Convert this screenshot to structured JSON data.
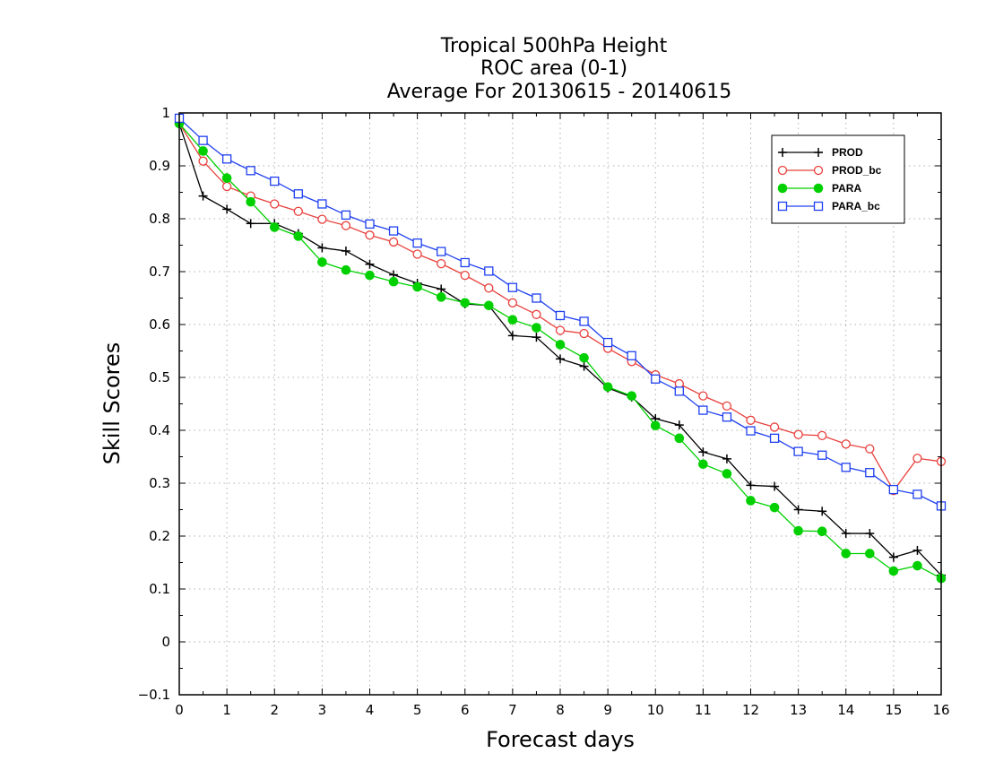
{
  "chart_data": {
    "type": "line",
    "title_lines": [
      "Tropical 500hPa Height",
      "ROC area (0-1)",
      "Average For 20130615 - 20140615"
    ],
    "xlabel": "Forecast days",
    "ylabel": "Skill Scores",
    "xlim": [
      0,
      16
    ],
    "ylim": [
      -0.1,
      1
    ],
    "xticks": [
      "0",
      "1",
      "2",
      "3",
      "4",
      "5",
      "6",
      "7",
      "8",
      "9",
      "10",
      "11",
      "12",
      "13",
      "14",
      "15",
      "16"
    ],
    "yticks": [
      "−0.1",
      "0",
      "0.1",
      "0.2",
      "0.3",
      "0.4",
      "0.5",
      "0.6",
      "0.7",
      "0.8",
      "0.9",
      "1"
    ],
    "grid": true,
    "legend_position": "top-right",
    "x": [
      0,
      0.5,
      1,
      1.5,
      2,
      2.5,
      3,
      3.5,
      4,
      4.5,
      5,
      5.5,
      6,
      6.5,
      7,
      7.5,
      8,
      8.5,
      9,
      9.5,
      10,
      10.5,
      11,
      11.5,
      12,
      12.5,
      13,
      13.5,
      14,
      14.5,
      15,
      15.5,
      16
    ],
    "series": [
      {
        "name": "PROD",
        "color": "#000000",
        "marker": "plus",
        "values": [
          0.98,
          0.843,
          0.818,
          0.791,
          0.791,
          0.772,
          0.745,
          0.739,
          0.714,
          0.694,
          0.678,
          0.667,
          0.639,
          0.636,
          0.579,
          0.576,
          0.535,
          0.521,
          0.48,
          0.463,
          0.422,
          0.41,
          0.359,
          0.346,
          0.296,
          0.294,
          0.25,
          0.247,
          0.205,
          0.205,
          0.16,
          0.173,
          0.126
        ]
      },
      {
        "name": "PROD_bc",
        "color": "#e8403c",
        "marker": "open-circle",
        "values": [
          0.98,
          0.909,
          0.861,
          0.843,
          0.828,
          0.814,
          0.799,
          0.787,
          0.769,
          0.756,
          0.733,
          0.715,
          0.693,
          0.669,
          0.641,
          0.619,
          0.589,
          0.583,
          0.555,
          0.53,
          0.505,
          0.488,
          0.465,
          0.446,
          0.419,
          0.406,
          0.392,
          0.39,
          0.374,
          0.365,
          0.286,
          0.347,
          0.341
        ]
      },
      {
        "name": "PARA",
        "color": "#00d000",
        "marker": "filled-circle",
        "values": [
          0.98,
          0.928,
          0.877,
          0.832,
          0.784,
          0.767,
          0.718,
          0.703,
          0.693,
          0.681,
          0.671,
          0.652,
          0.641,
          0.636,
          0.609,
          0.594,
          0.562,
          0.537,
          0.482,
          0.465,
          0.409,
          0.385,
          0.336,
          0.318,
          0.267,
          0.254,
          0.21,
          0.209,
          0.167,
          0.167,
          0.134,
          0.144,
          0.12
        ]
      },
      {
        "name": "PARA_bc",
        "color": "#2040f0",
        "marker": "open-square",
        "values": [
          0.99,
          0.948,
          0.913,
          0.891,
          0.871,
          0.847,
          0.828,
          0.807,
          0.79,
          0.777,
          0.754,
          0.738,
          0.717,
          0.701,
          0.67,
          0.65,
          0.617,
          0.606,
          0.566,
          0.541,
          0.497,
          0.474,
          0.438,
          0.425,
          0.399,
          0.385,
          0.36,
          0.353,
          0.33,
          0.32,
          0.288,
          0.279,
          0.257
        ]
      }
    ]
  }
}
